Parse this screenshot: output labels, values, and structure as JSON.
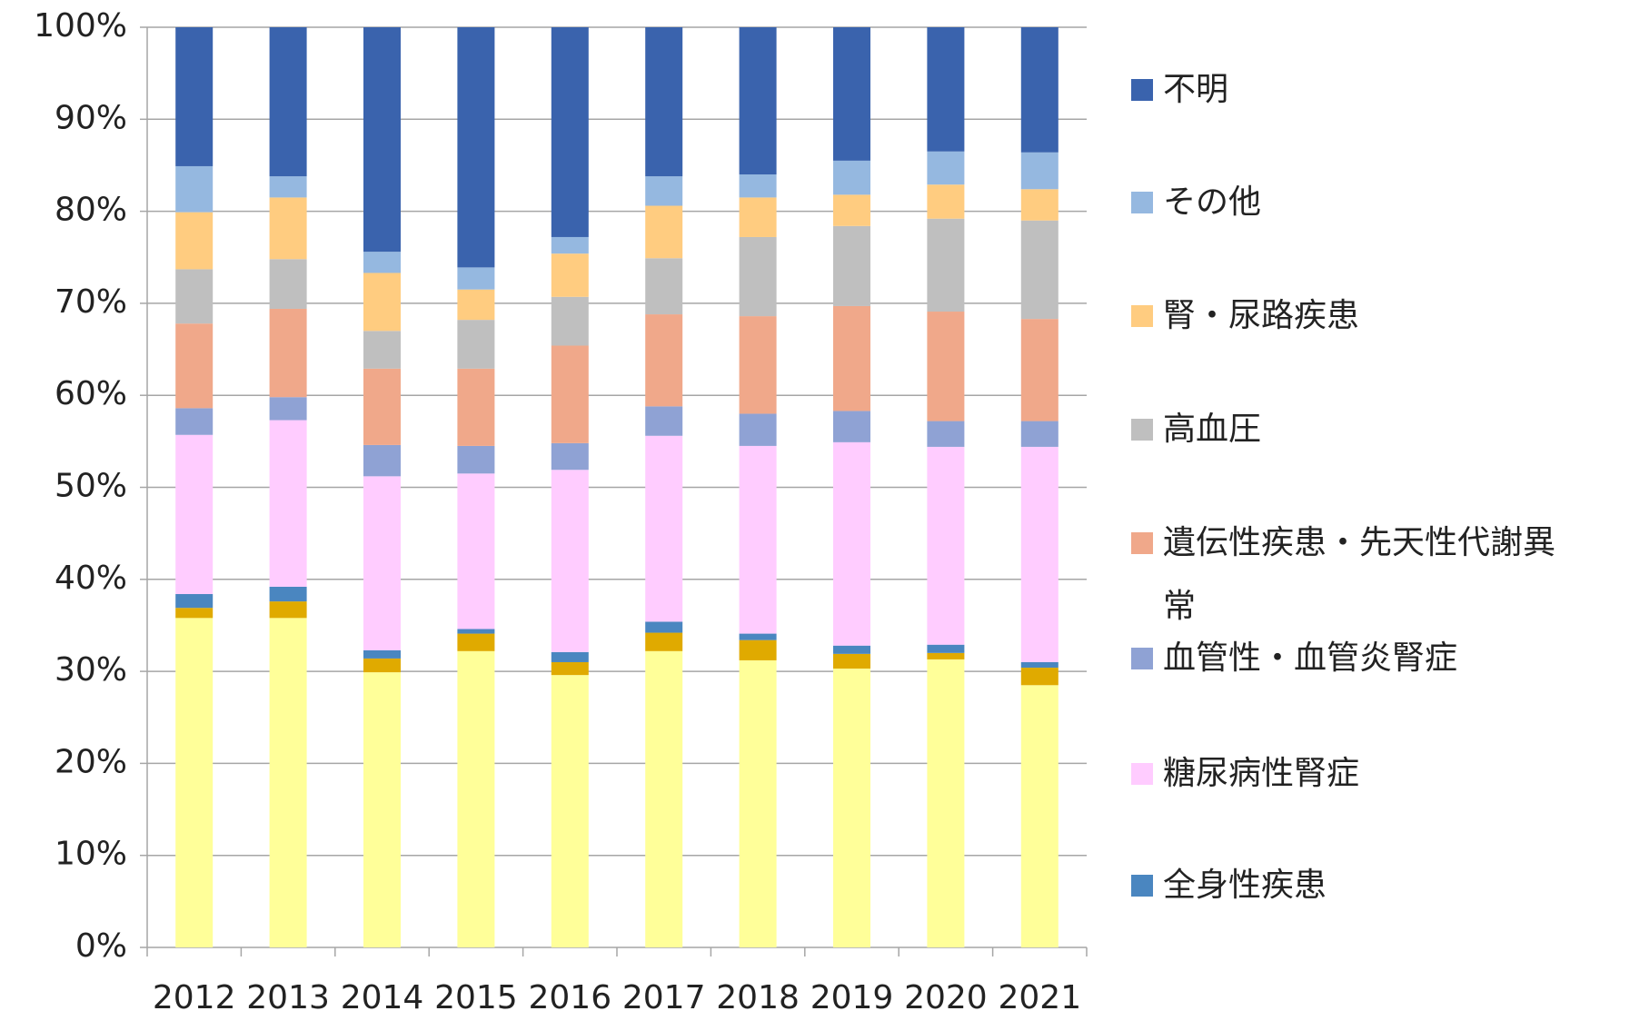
{
  "chart_data": {
    "type": "stacked_bar",
    "categories": [
      "2012",
      "2013",
      "2014",
      "2015",
      "2016",
      "2017",
      "2018",
      "2019",
      "2020",
      "2021"
    ],
    "series": [
      {
        "color": "#ffff99",
        "values": [
          35.8,
          35.8,
          29.9,
          32.2,
          29.6,
          32.2,
          31.2,
          30.3,
          31.3,
          28.5
        ]
      },
      {
        "color": "#e0aa00",
        "values": [
          1.1,
          1.8,
          1.5,
          1.9,
          1.4,
          2.0,
          2.2,
          1.6,
          0.7,
          1.9
        ]
      },
      {
        "name": "全身性疾患",
        "color": "#4a86c0",
        "values": [
          1.5,
          1.6,
          0.9,
          0.5,
          1.1,
          1.2,
          0.7,
          0.9,
          0.9,
          0.6
        ]
      },
      {
        "name": "糖尿病性腎症",
        "color": "#ffccff",
        "values": [
          17.3,
          18.1,
          18.9,
          16.9,
          19.8,
          20.2,
          20.4,
          22.1,
          21.5,
          23.4
        ]
      },
      {
        "name": "血管性・血管炎腎症",
        "color": "#8fa2d4",
        "values": [
          2.9,
          2.5,
          3.4,
          3.0,
          2.9,
          3.2,
          3.5,
          3.4,
          2.8,
          2.8
        ]
      },
      {
        "name": "遺伝性疾患・先天性代謝異常",
        "color": "#f0a88a",
        "values": [
          9.2,
          9.6,
          8.3,
          8.4,
          10.6,
          10.0,
          10.6,
          11.4,
          11.9,
          11.1
        ]
      },
      {
        "name": "高血圧",
        "color": "#bfbfbf",
        "values": [
          5.9,
          5.4,
          4.1,
          5.3,
          5.3,
          6.1,
          8.6,
          8.7,
          10.1,
          10.7
        ]
      },
      {
        "name": "腎・尿路疾患",
        "color": "#ffcc80",
        "values": [
          6.2,
          6.7,
          6.3,
          3.3,
          4.7,
          5.7,
          4.3,
          3.4,
          3.7,
          3.4
        ]
      },
      {
        "name": "その他",
        "color": "#95b8e0",
        "values": [
          5.0,
          2.3,
          2.3,
          2.4,
          1.8,
          3.2,
          2.5,
          3.7,
          3.6,
          4.0
        ]
      },
      {
        "name": "不明",
        "color": "#3a63ad",
        "values": [
          15.1,
          16.2,
          24.4,
          26.1,
          22.8,
          16.2,
          16.0,
          14.5,
          13.5,
          13.6
        ]
      }
    ],
    "ylim": [
      0,
      100
    ],
    "yticks": [
      {
        "value": 0,
        "label": "0%"
      },
      {
        "value": 10,
        "label": "10%"
      },
      {
        "value": 20,
        "label": "20%"
      },
      {
        "value": 30,
        "label": "30%"
      },
      {
        "value": 40,
        "label": "40%"
      },
      {
        "value": 50,
        "label": "50%"
      },
      {
        "value": 60,
        "label": "60%"
      },
      {
        "value": 70,
        "label": "70%"
      },
      {
        "value": 80,
        "label": "80%"
      },
      {
        "value": 90,
        "label": "90%"
      },
      {
        "value": 100,
        "label": "100%"
      }
    ],
    "grid": true,
    "legend": "right"
  }
}
